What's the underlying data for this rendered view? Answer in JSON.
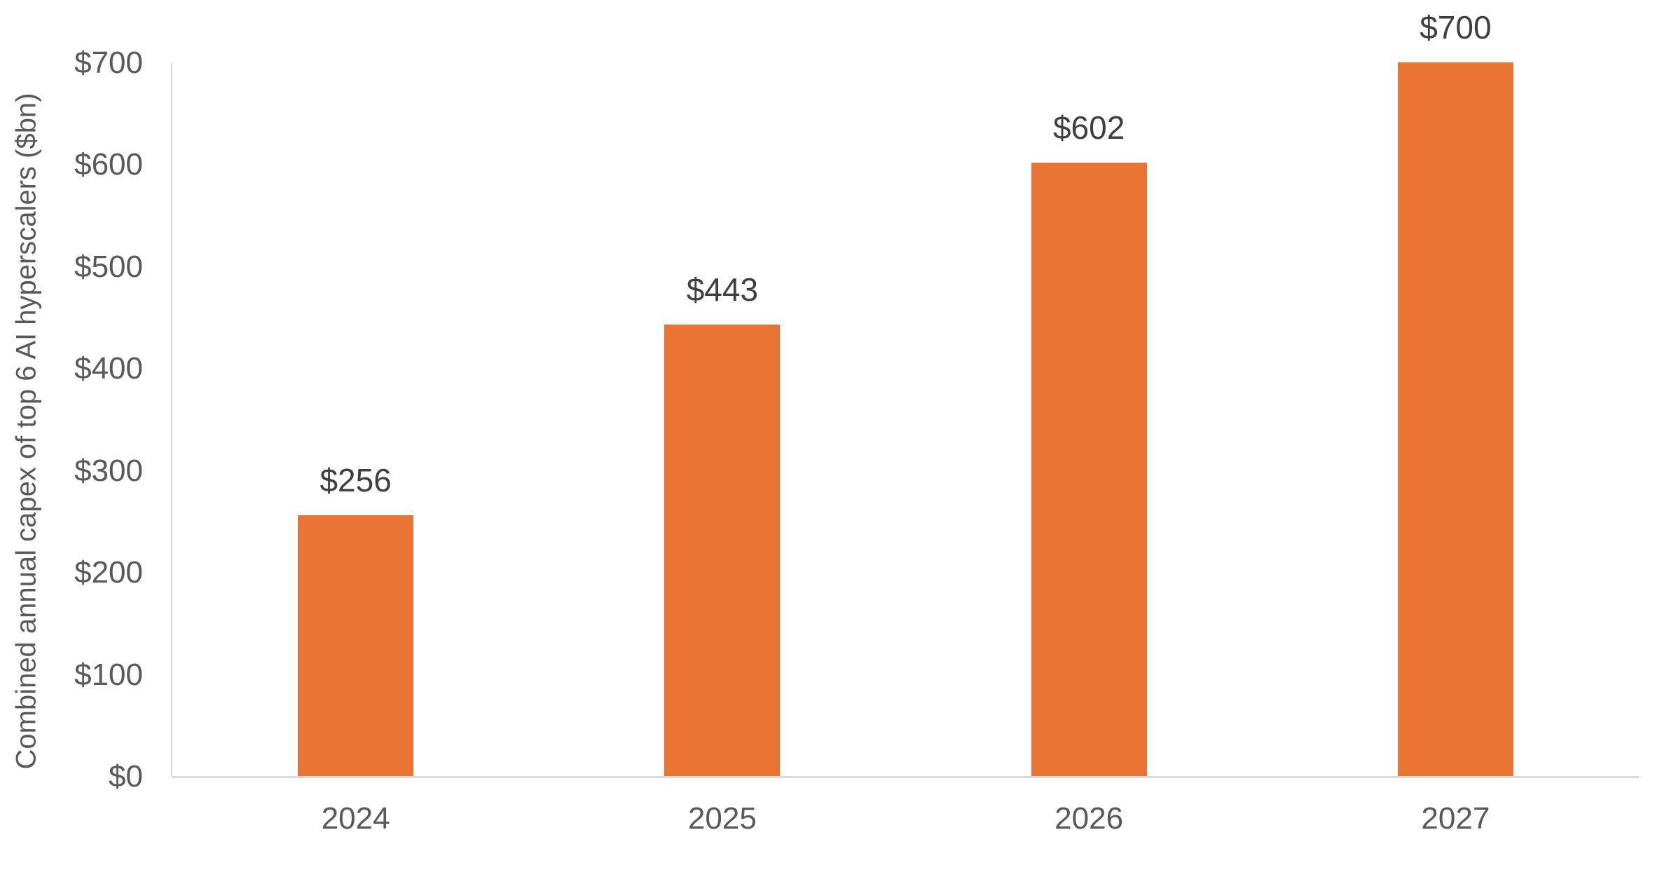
{
  "chart_data": {
    "type": "bar",
    "categories": [
      "2024",
      "2025",
      "2026",
      "2027"
    ],
    "values": [
      256,
      443,
      602,
      700
    ],
    "value_labels": [
      "$256",
      "$443",
      "$602",
      "$700"
    ],
    "title": "",
    "xlabel": "",
    "ylabel": "Combined annual capex of top 6 AI hyperscalers ($bn)",
    "ylim": [
      0,
      700
    ],
    "ytick_step": 100,
    "ytick_labels": [
      "$0",
      "$100",
      "$200",
      "$300",
      "$400",
      "$500",
      "$600",
      "$700"
    ],
    "grid": false,
    "legend": null,
    "colors": {
      "bar": "#EA7434",
      "value_label": "#3F3F3F",
      "tick_label": "#595959",
      "axis_title": "#595959",
      "axis_line": "#D9D9D9",
      "background": "#FFFFFF"
    }
  }
}
